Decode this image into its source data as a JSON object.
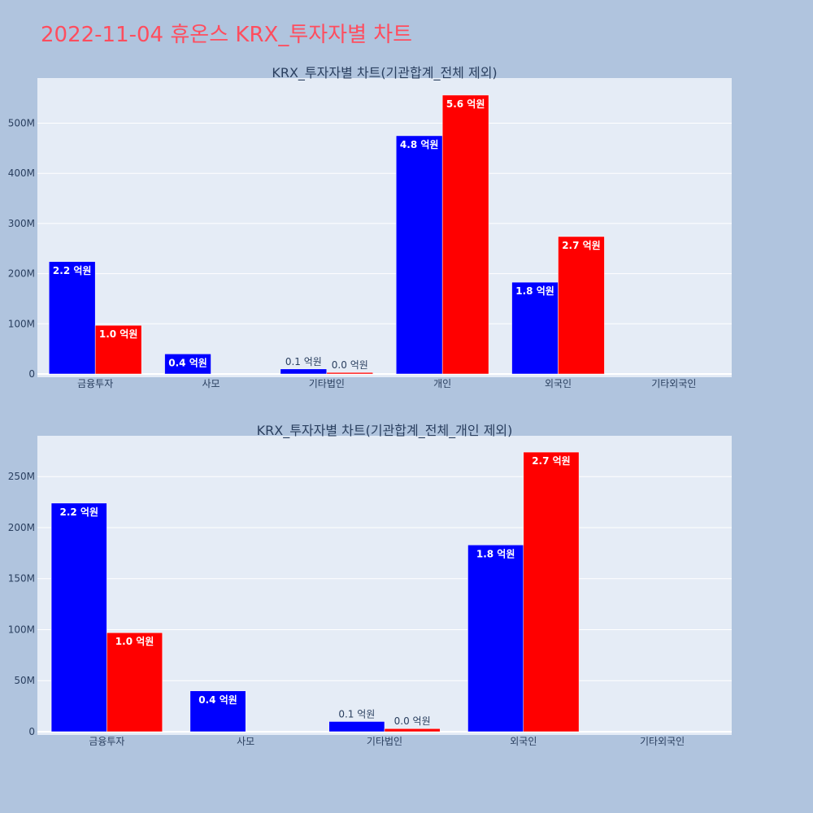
{
  "page": {
    "title": "2022-11-04 휴온스 KRX_투자자별 차트"
  },
  "colors": {
    "background": "#b0c4de",
    "plot_bg": "#e5ecf6",
    "buy": "#0000ff",
    "sell": "#ff0000",
    "title": "#ff4d5e"
  },
  "chart_data": [
    {
      "type": "bar",
      "title": "KRX_투자자별 차트(기관합계_전체 제외)",
      "categories": [
        "금융투자",
        "사모",
        "기타법인",
        "개인",
        "외국인",
        "기타외국인"
      ],
      "series": [
        {
          "color": "#0000ff",
          "values": [
            224000000,
            40000000,
            10000000,
            475000000,
            183000000,
            0
          ],
          "labels": [
            "2.2 억원",
            "0.4 억원",
            "0.1 억원",
            "4.8 억원",
            "1.8 억원",
            ""
          ]
        },
        {
          "color": "#ff0000",
          "values": [
            97000000,
            0,
            3000000,
            556000000,
            274000000,
            0
          ],
          "labels": [
            "1.0 억원",
            "",
            "0.0 억원",
            "5.6 억원",
            "2.7 억원",
            ""
          ]
        }
      ],
      "yticks": [
        0,
        100000000,
        200000000,
        300000000,
        400000000,
        500000000
      ],
      "yticklabels": [
        "0",
        "100M",
        "200M",
        "300M",
        "400M",
        "500M"
      ],
      "ylim": [
        0,
        590000000
      ],
      "grid": true,
      "legend": "none"
    },
    {
      "type": "bar",
      "title": "KRX_투자자별 차트(기관합계_전체_개인 제외)",
      "categories": [
        "금융투자",
        "사모",
        "기타법인",
        "외국인",
        "기타외국인"
      ],
      "series": [
        {
          "color": "#0000ff",
          "values": [
            224000000,
            40000000,
            10000000,
            183000000,
            0
          ],
          "labels": [
            "2.2 억원",
            "0.4 억원",
            "0.1 억원",
            "1.8 억원",
            ""
          ]
        },
        {
          "color": "#ff0000",
          "values": [
            97000000,
            0,
            3000000,
            274000000,
            0
          ],
          "labels": [
            "1.0 억원",
            "",
            "0.0 억원",
            "2.7 억원",
            ""
          ]
        }
      ],
      "yticks": [
        0,
        50000000,
        100000000,
        150000000,
        200000000,
        250000000
      ],
      "yticklabels": [
        "0",
        "50M",
        "100M",
        "150M",
        "200M",
        "250M"
      ],
      "ylim": [
        0,
        290000000
      ],
      "grid": true,
      "legend": "none"
    }
  ]
}
